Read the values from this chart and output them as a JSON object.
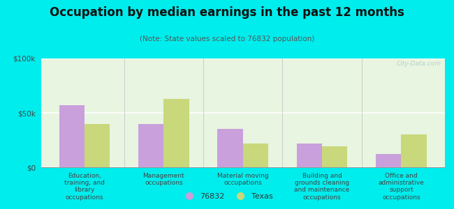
{
  "title": "Occupation by median earnings in the past 12 months",
  "subtitle": "(Note: State values scaled to 76832 population)",
  "categories": [
    "Education,\ntraining, and\nlibrary\noccupations",
    "Management\noccupations",
    "Material moving\noccupations",
    "Building and\ngrounds cleaning\nand maintenance\noccupations",
    "Office and\nadministrative\nsupport\noccupations"
  ],
  "values_76832": [
    57000,
    40000,
    35000,
    22000,
    12000
  ],
  "values_texas": [
    40000,
    63000,
    22000,
    19000,
    30000
  ],
  "color_76832": "#c9a0dc",
  "color_texas": "#c8d87a",
  "ylim": [
    0,
    100000
  ],
  "yticks": [
    0,
    50000,
    100000
  ],
  "ytick_labels": [
    "$0",
    "$50k",
    "$100k"
  ],
  "background_color": "#00eded",
  "plot_bg": "#e8f5e0",
  "bar_width": 0.32,
  "legend_labels": [
    "76832",
    "Texas"
  ],
  "watermark": "City-Data.com"
}
